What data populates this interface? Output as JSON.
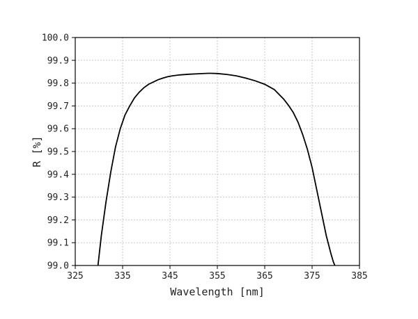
{
  "chart_data": {
    "type": "line",
    "xlabel": "Wavelength [nm]",
    "ylabel": "R [%]",
    "xlim": [
      325,
      385
    ],
    "ylim": [
      99.0,
      100.0
    ],
    "x_ticks": [
      "325",
      "335",
      "345",
      "355",
      "365",
      "375",
      "385"
    ],
    "y_ticks": [
      "99.0",
      "99.1",
      "99.2",
      "99.3",
      "99.4",
      "99.5",
      "99.6",
      "99.7",
      "99.8",
      "99.9",
      "100.0"
    ],
    "grid": true,
    "series": [
      {
        "color": "#000000",
        "x": [
          329.8,
          330.5,
          331.5,
          332.5,
          333.5,
          334.5,
          335.5,
          336.5,
          337.5,
          338.5,
          339.5,
          340.5,
          341.5,
          342.5,
          343.5,
          344.5,
          345.5,
          347.0,
          349.0,
          351.0,
          353.0,
          353.7,
          355.0,
          357.0,
          359.0,
          361.0,
          363.0,
          365.0,
          367.0,
          369.0,
          370.0,
          371.0,
          372.0,
          373.0,
          374.0,
          375.0,
          376.0,
          377.0,
          378.0,
          379.0,
          379.5,
          379.8
        ],
        "y": [
          99.0,
          99.13,
          99.28,
          99.41,
          99.52,
          99.6,
          99.66,
          99.7,
          99.735,
          99.76,
          99.78,
          99.795,
          99.805,
          99.815,
          99.822,
          99.828,
          99.832,
          99.836,
          99.839,
          99.841,
          99.843,
          99.843,
          99.842,
          99.838,
          99.832,
          99.822,
          99.81,
          99.795,
          99.772,
          99.73,
          99.703,
          99.672,
          99.63,
          99.575,
          99.51,
          99.43,
          99.33,
          99.23,
          99.13,
          99.05,
          99.015,
          99.0
        ]
      }
    ]
  }
}
